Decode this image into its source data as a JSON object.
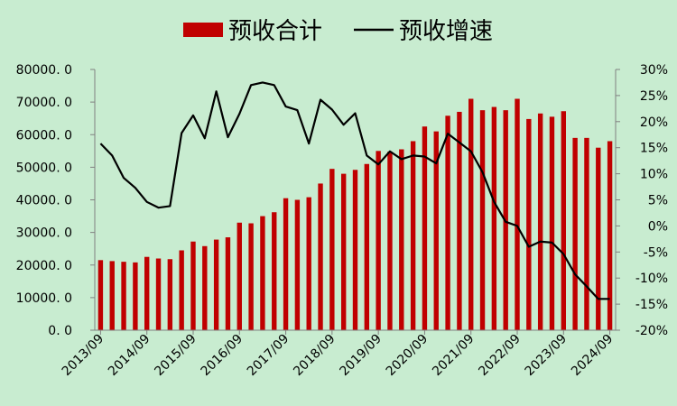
{
  "chart_data": {
    "type": "bar",
    "colors": {
      "bar": "#c00000",
      "line": "#000000",
      "background": "#c8ecd0"
    },
    "legend": {
      "placement": "top-center",
      "items": [
        {
          "label": "预收合计",
          "kind": "bar"
        },
        {
          "label": "预收增速",
          "kind": "line"
        }
      ]
    },
    "grid": false,
    "x_tick_labels": [
      "2013/09",
      "2014/09",
      "2015/09",
      "2016/09",
      "2017/09",
      "2018/09",
      "2019/09",
      "2020/09",
      "2021/09",
      "2022/09",
      "2023/09",
      "2024/09"
    ],
    "y_left": {
      "ylim": [
        0,
        80000
      ],
      "ticks": [
        "0. 0",
        "10000. 0",
        "20000. 0",
        "30000. 0",
        "40000. 0",
        "50000. 0",
        "60000. 0",
        "70000. 0",
        "80000. 0"
      ]
    },
    "y_right": {
      "ylim": [
        -20,
        30
      ],
      "ticks": [
        "-20%",
        "-15%",
        "-10%",
        "-5%",
        "0%",
        "5%",
        "10%",
        "15%",
        "20%",
        "25%",
        "30%"
      ]
    },
    "series": [
      {
        "name": "预收合计",
        "type": "bar",
        "axis": "left",
        "values": [
          21500,
          21200,
          21000,
          20800,
          22500,
          22000,
          21800,
          24500,
          27200,
          25800,
          27800,
          28500,
          33000,
          32800,
          35000,
          36200,
          40500,
          40000,
          40800,
          45000,
          49500,
          48000,
          49200,
          51000,
          55000,
          54800,
          55500,
          58000,
          62500,
          61000,
          65800,
          67000,
          71000,
          67500,
          68500,
          67500,
          71000,
          64800,
          66500,
          65500,
          67200,
          59000,
          59000,
          56000,
          58000
        ]
      },
      {
        "name": "预收增速",
        "type": "line",
        "axis": "right",
        "values": [
          15.8,
          13.5,
          9.2,
          7.3,
          4.6,
          3.5,
          3.8,
          17.8,
          21.2,
          16.8,
          25.8,
          17.0,
          21.5,
          27.0,
          27.5,
          27.0,
          22.9,
          22.2,
          15.8,
          24.2,
          22.3,
          19.4,
          21.6,
          13.5,
          11.8,
          14.3,
          12.8,
          13.5,
          13.3,
          12.0,
          17.7,
          16.0,
          14.3,
          10.3,
          4.6,
          0.8,
          0.0,
          -4.0,
          -3.0,
          -3.2,
          -5.4,
          -9.3,
          -11.6,
          -14.0,
          -14.0
        ]
      }
    ]
  }
}
